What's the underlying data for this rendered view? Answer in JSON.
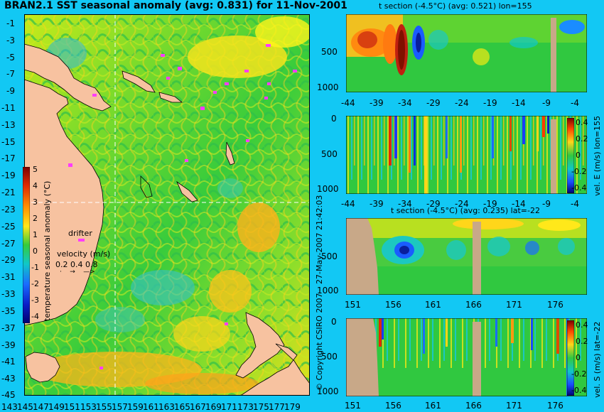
{
  "map": {
    "title": "BRAN2.1 SST seasonal anomaly (avg: 0.831) for 11-Nov-2001",
    "lat_ticks": [
      "-1",
      "-3",
      "-5",
      "-7",
      "-9",
      "-11",
      "-13",
      "-15",
      "-17",
      "-19",
      "-21",
      "-23",
      "-25",
      "-27",
      "-29",
      "-31",
      "-33",
      "-35",
      "-37",
      "-39",
      "-41",
      "-43",
      "-45"
    ],
    "lon_ticks": [
      "143",
      "145",
      "147",
      "149",
      "151",
      "153",
      "155",
      "157",
      "159",
      "161",
      "163",
      "165",
      "167",
      "169",
      "171",
      "173",
      "175",
      "177",
      "179"
    ],
    "colorbar": {
      "label": "temperature seasonal anomaly (°C)",
      "ticks": [
        "5",
        "4",
        "3",
        "2",
        "1",
        "0",
        "-1",
        "-2",
        "-3",
        "-4"
      ]
    },
    "legend": {
      "drifter_label": "drifter",
      "velocity_label": "velocity (m/s)",
      "velocity_scale": "0.2 0.4 0.8"
    },
    "colors": {
      "land": "#f7c2a0",
      "drifter": "#ff3cff",
      "background": "#12c8f4"
    }
  },
  "credit": {
    "timestamp": "27-May-2007 21:42:03",
    "copyright": "© Copyright CSIRO 2007"
  },
  "panels": {
    "t_lon": {
      "title": "t section (-4.5°C) (avg: 0.521) lon=155",
      "x_ticks": [
        "-44",
        "-39",
        "-34",
        "-29",
        "-24",
        "-19",
        "-14",
        "-9",
        "-4"
      ],
      "y_ticks": [
        "500",
        "1000"
      ]
    },
    "v_lon": {
      "title": "vel. E (m/s) lon=155",
      "x_ticks": [
        "-44",
        "-39",
        "-34",
        "-29",
        "-24",
        "-19",
        "-14",
        "-9",
        "-4"
      ],
      "y_ticks": [
        "0",
        "500",
        "1000"
      ],
      "cbar_ticks": [
        "0.4",
        "0.2",
        "0",
        "-0.2",
        "-0.4"
      ]
    },
    "t_lat": {
      "title": "t section (-4.5°C) (avg: 0.235) lat=-22",
      "x_ticks": [
        "151",
        "156",
        "161",
        "166",
        "171",
        "176"
      ],
      "y_ticks": [
        "500",
        "1000"
      ]
    },
    "v_lat": {
      "title": "vel. S (m/s) lat=-22",
      "x_ticks": [
        "151",
        "156",
        "161",
        "166",
        "171",
        "176"
      ],
      "y_ticks": [
        "0",
        "500",
        "1000"
      ],
      "cbar_ticks": [
        "0.4",
        "0.2",
        "0",
        "-0.2",
        "-0.4"
      ]
    }
  }
}
